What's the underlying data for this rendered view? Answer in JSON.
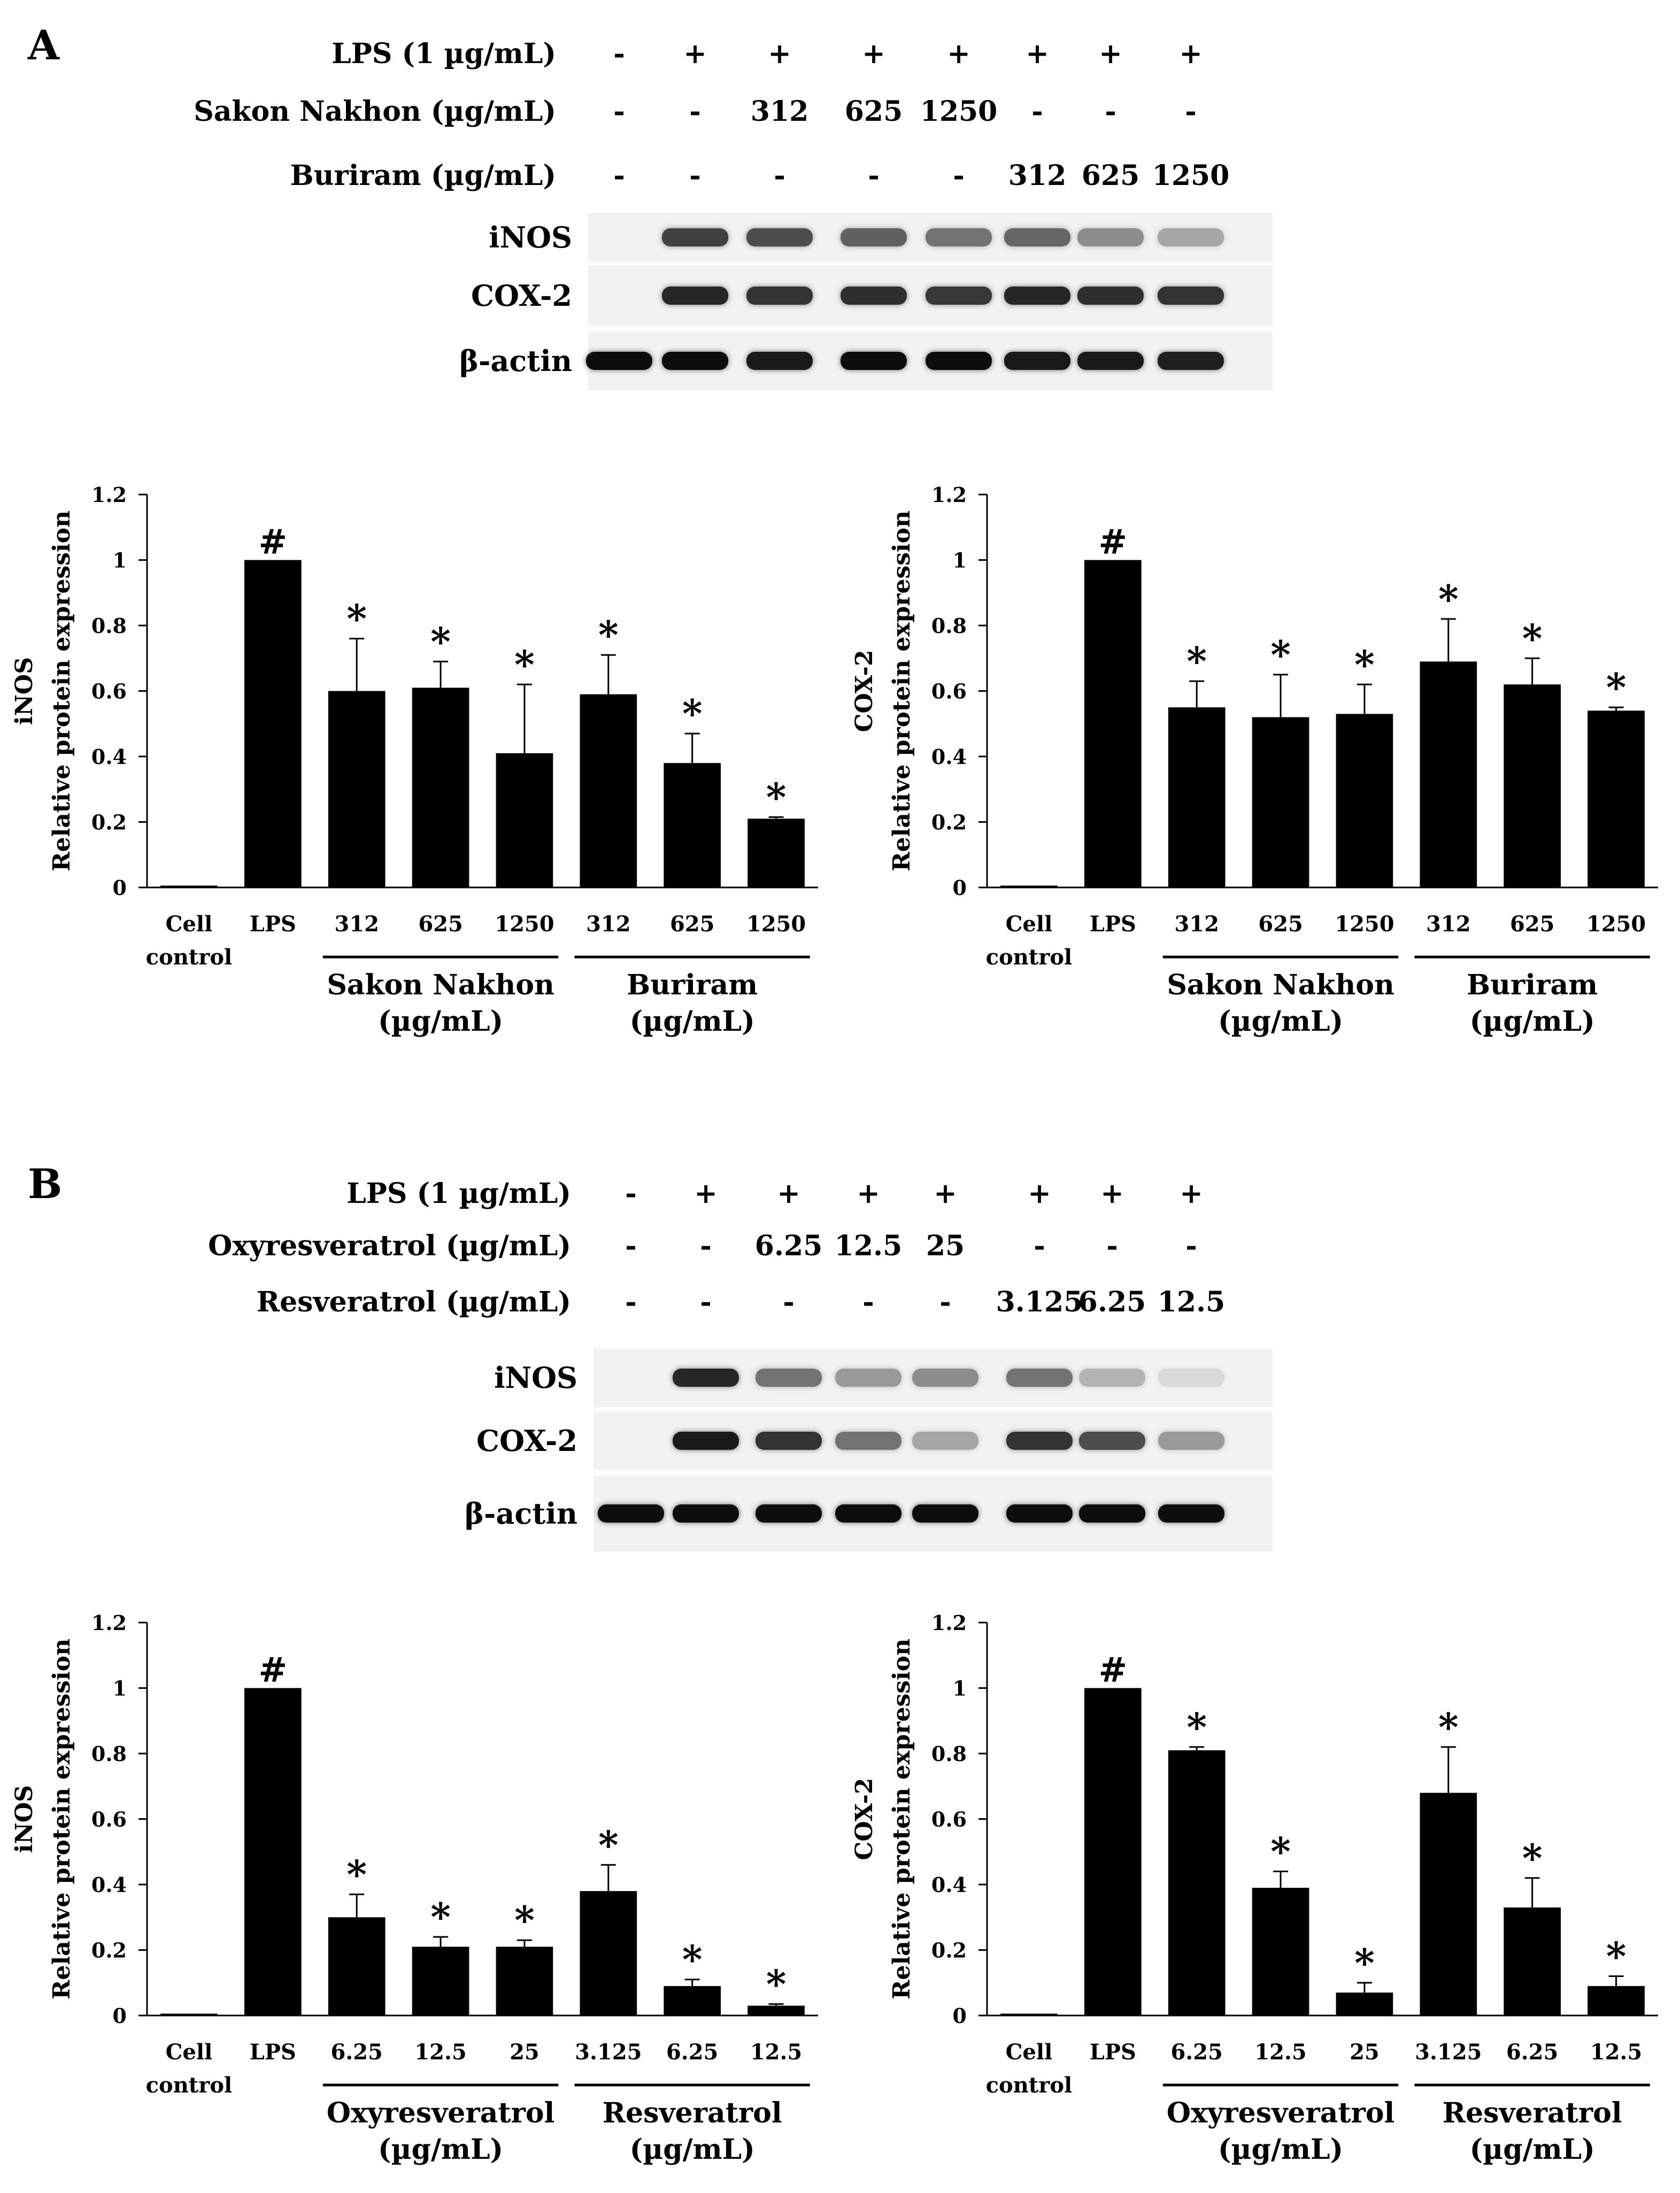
{
  "panels": [
    {
      "letter": "A",
      "conditions": [
        {
          "label": "LPS (1 µg/mL)",
          "cells": [
            "-",
            "+",
            "+",
            "+",
            "+",
            "+",
            "+",
            "+"
          ]
        },
        {
          "label": "Sakon Nakhon (µg/mL)",
          "cells": [
            "-",
            "-",
            "312",
            "625",
            "1250",
            "-",
            "-",
            "-"
          ]
        },
        {
          "label": "Buriram (µg/mL)",
          "cells": [
            "-",
            "-",
            "-",
            "-",
            "-",
            "312",
            "625",
            "1250"
          ]
        }
      ],
      "blots": [
        {
          "label": "iNOS",
          "intensity": [
            0.0,
            0.75,
            0.7,
            0.62,
            0.55,
            0.6,
            0.45,
            0.35
          ]
        },
        {
          "label": "COX-2",
          "intensity": [
            0.0,
            0.85,
            0.8,
            0.82,
            0.78,
            0.85,
            0.82,
            0.8
          ]
        },
        {
          "label": "β-actin",
          "intensity": [
            0.95,
            0.95,
            0.9,
            0.95,
            0.95,
            0.9,
            0.9,
            0.88
          ]
        }
      ]
    },
    {
      "letter": "B",
      "conditions": [
        {
          "label": "LPS (1 µg/mL)",
          "cells": [
            "-",
            "+",
            "+",
            "+",
            "+",
            "+",
            "+",
            "+"
          ]
        },
        {
          "label": "Oxyresveratrol (µg/mL)",
          "cells": [
            "-",
            "-",
            "6.25",
            "12.5",
            "25",
            "-",
            "-",
            "-"
          ]
        },
        {
          "label": "Resveratrol (µg/mL)",
          "cells": [
            "-",
            "-",
            "-",
            "-",
            "-",
            "3.125",
            "6.25",
            "12.5"
          ]
        }
      ],
      "blots": [
        {
          "label": "iNOS",
          "intensity": [
            0.0,
            0.85,
            0.55,
            0.4,
            0.45,
            0.55,
            0.3,
            0.15
          ]
        },
        {
          "label": "COX-2",
          "intensity": [
            0.0,
            0.9,
            0.8,
            0.55,
            0.35,
            0.8,
            0.7,
            0.4
          ]
        },
        {
          "label": "β-actin",
          "intensity": [
            0.95,
            0.95,
            0.95,
            0.95,
            0.95,
            0.95,
            0.95,
            0.95
          ]
        }
      ]
    }
  ],
  "chart_data": [
    {
      "id": "A-iNOS",
      "type": "bar",
      "ylabel_name": "iNOS",
      "ylabel": "Relative protein expression",
      "ylim": [
        0,
        1.2
      ],
      "yticks": [
        "0",
        "0.2",
        "0.4",
        "0.6",
        "0.8",
        "1",
        "1.2"
      ],
      "categories": [
        "Cell control",
        "LPS",
        "312",
        "625",
        "1250",
        "312",
        "625",
        "1250"
      ],
      "values": [
        0,
        1.0,
        0.6,
        0.61,
        0.41,
        0.59,
        0.38,
        0.21
      ],
      "errors": [
        0,
        0,
        0.16,
        0.08,
        0.21,
        0.12,
        0.09,
        0.005
      ],
      "marks": [
        "",
        "#",
        "*",
        "*",
        "*",
        "*",
        "*",
        "*"
      ],
      "groups": [
        {
          "label": "Sakon Nakhon",
          "unit": "(µg/mL)",
          "start": 2,
          "end": 4
        },
        {
          "label": "Buriram",
          "unit": "(µg/mL)",
          "start": 5,
          "end": 7
        }
      ]
    },
    {
      "id": "A-COX2",
      "type": "bar",
      "ylabel_name": "COX-2",
      "ylabel": "Relative protein expression",
      "ylim": [
        0,
        1.2
      ],
      "yticks": [
        "0",
        "0.2",
        "0.4",
        "0.6",
        "0.8",
        "1",
        "1.2"
      ],
      "categories": [
        "Cell control",
        "LPS",
        "312",
        "625",
        "1250",
        "312",
        "625",
        "1250"
      ],
      "values": [
        0,
        1.0,
        0.55,
        0.52,
        0.53,
        0.69,
        0.62,
        0.54
      ],
      "errors": [
        0,
        0,
        0.08,
        0.13,
        0.09,
        0.13,
        0.08,
        0.01
      ],
      "marks": [
        "",
        "#",
        "*",
        "*",
        "*",
        "*",
        "*",
        "*"
      ],
      "groups": [
        {
          "label": "Sakon Nakhon",
          "unit": "(µg/mL)",
          "start": 2,
          "end": 4
        },
        {
          "label": "Buriram",
          "unit": "(µg/mL)",
          "start": 5,
          "end": 7
        }
      ]
    },
    {
      "id": "B-iNOS",
      "type": "bar",
      "ylabel_name": "iNOS",
      "ylabel": "Relative protein expression",
      "ylim": [
        0,
        1.2
      ],
      "yticks": [
        "0",
        "0.2",
        "0.4",
        "0.6",
        "0.8",
        "1",
        "1.2"
      ],
      "categories": [
        "Cell control",
        "LPS",
        "6.25",
        "12.5",
        "25",
        "3.125",
        "6.25",
        "12.5"
      ],
      "values": [
        0,
        1.0,
        0.3,
        0.21,
        0.21,
        0.38,
        0.09,
        0.03
      ],
      "errors": [
        0,
        0,
        0.07,
        0.03,
        0.02,
        0.08,
        0.02,
        0.005
      ],
      "marks": [
        "",
        "#",
        "*",
        "*",
        "*",
        "*",
        "*",
        "*"
      ],
      "groups": [
        {
          "label": "Oxyresveratrol",
          "unit": "(µg/mL)",
          "start": 2,
          "end": 4
        },
        {
          "label": "Resveratrol",
          "unit": "(µg/mL)",
          "start": 5,
          "end": 7
        }
      ]
    },
    {
      "id": "B-COX2",
      "type": "bar",
      "ylabel_name": "COX-2",
      "ylabel": "Relative protein expression",
      "ylim": [
        0,
        1.2
      ],
      "yticks": [
        "0",
        "0.2",
        "0.4",
        "0.6",
        "0.8",
        "1",
        "1.2"
      ],
      "categories": [
        "Cell control",
        "LPS",
        "6.25",
        "12.5",
        "25",
        "3.125",
        "6.25",
        "12.5"
      ],
      "values": [
        0,
        1.0,
        0.81,
        0.39,
        0.07,
        0.68,
        0.33,
        0.09
      ],
      "errors": [
        0,
        0,
        0.01,
        0.05,
        0.03,
        0.14,
        0.09,
        0.03
      ],
      "marks": [
        "",
        "#",
        "*",
        "*",
        "*",
        "*",
        "*",
        "*"
      ],
      "groups": [
        {
          "label": "Oxyresveratrol",
          "unit": "(µg/mL)",
          "start": 2,
          "end": 4
        },
        {
          "label": "Resveratrol",
          "unit": "(µg/mL)",
          "start": 5,
          "end": 7
        }
      ]
    }
  ]
}
